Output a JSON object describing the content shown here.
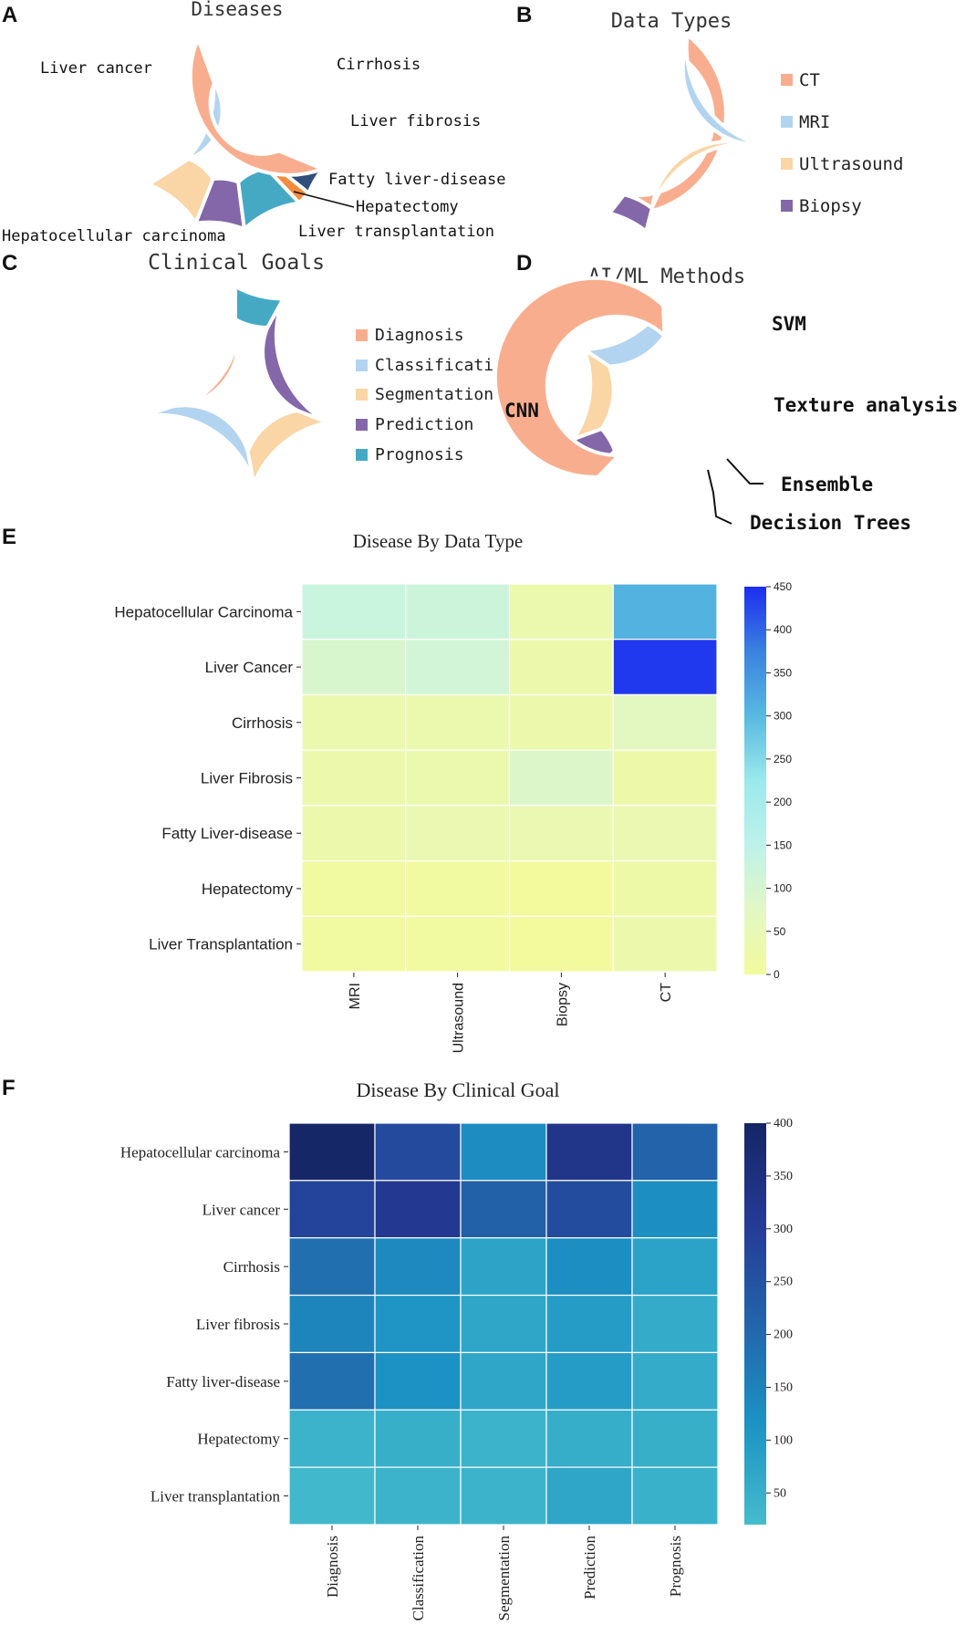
{
  "panel_letters": [
    "A",
    "B",
    "C",
    "D",
    "E",
    "F"
  ],
  "chart_data": [
    {
      "id": "A",
      "type": "pie",
      "subtype": "donut",
      "title": "Diseases",
      "labels": [
        "Liver cancer",
        "Cirrhosis",
        "Liver fibrosis",
        "Fatty liver-disease",
        "Hepatectomy",
        "Liver transplantation",
        "Hepatocellular carcinoma"
      ],
      "values": [
        28.5,
        10,
        8,
        10,
        2.2,
        4.5,
        36.8
      ],
      "colors": [
        "#b3d4f0",
        "#fad5a5",
        "#8467a8",
        "#45a9c4",
        "#f58b3c",
        "#2f4f7a",
        "#f8ae8e"
      ]
    },
    {
      "id": "B",
      "type": "pie",
      "subtype": "donut",
      "title": "Data Types",
      "labels": [
        "CT",
        "MRI",
        "Ultrasound",
        "Biopsy"
      ],
      "values": [
        42,
        24.5,
        27,
        6.5
      ],
      "colors": [
        "#f8ae8e",
        "#b3d4f0",
        "#fad5a5",
        "#8467a8"
      ],
      "legend": "right"
    },
    {
      "id": "C",
      "type": "pie",
      "subtype": "donut",
      "title": "Clinical Goals",
      "labels": [
        "Diagnosis",
        "Classification",
        "Segmentation",
        "Prediction",
        "Prognosis"
      ],
      "values": [
        30,
        23,
        16,
        23,
        8
      ],
      "colors": [
        "#f8ae8e",
        "#b3d4f0",
        "#fad5a5",
        "#8467a8",
        "#45a9c4"
      ],
      "legend": "right"
    },
    {
      "id": "D",
      "type": "pie",
      "subtype": "donut",
      "title": "AI/ML Methods",
      "labels": [
        "SVM",
        "Texture analysis",
        "Ensemble",
        "Decision Trees",
        "CNN"
      ],
      "values": [
        15,
        15,
        6,
        1.3,
        62.7
      ],
      "colors": [
        "#b3d4f0",
        "#fad5a5",
        "#8467a8",
        "#45a9c4",
        "#f8ae8e"
      ]
    },
    {
      "id": "E",
      "type": "heatmap",
      "title": "Disease By Data Type",
      "rows": [
        "Hepatocellular Carcinoma",
        "Liver Cancer",
        "Cirrhosis",
        "Liver Fibrosis",
        "Fatty Liver-disease",
        "Hepatectomy",
        "Liver Transplantation"
      ],
      "cols": [
        "MRI",
        "Ultrasound",
        "Biopsy",
        "CT"
      ],
      "values": [
        [
          125,
          120,
          35,
          310
        ],
        [
          95,
          110,
          30,
          440
        ],
        [
          35,
          35,
          30,
          70
        ],
        [
          30,
          35,
          85,
          25
        ],
        [
          30,
          40,
          40,
          40
        ],
        [
          10,
          10,
          2,
          20
        ],
        [
          10,
          10,
          2,
          30
        ]
      ],
      "vmin": 0,
      "vmax": 450,
      "colorbar_ticks": [
        0,
        50,
        100,
        150,
        200,
        250,
        300,
        350,
        400,
        450
      ],
      "colorscale": [
        "#f3fa9c",
        "#e2f7c4",
        "#bdf2ea",
        "#9ae9ec",
        "#58b9e0",
        "#3a82e0",
        "#1c2df0"
      ]
    },
    {
      "id": "F",
      "type": "heatmap",
      "title": "Disease By Clinical Goal",
      "rows": [
        "Hepatocellular carcinoma",
        "Liver cancer",
        "Cirrhosis",
        "Liver fibrosis",
        "Fatty liver-disease",
        "Hepatectomy",
        "Liver transplantation"
      ],
      "cols": [
        "Diagnosis",
        "Classification",
        "Segmentation",
        "Prediction",
        "Prognosis"
      ],
      "values": [
        [
          395,
          270,
          130,
          330,
          215
        ],
        [
          285,
          315,
          220,
          265,
          125
        ],
        [
          190,
          135,
          75,
          125,
          80
        ],
        [
          145,
          110,
          70,
          95,
          60
        ],
        [
          190,
          120,
          70,
          95,
          60
        ],
        [
          40,
          50,
          40,
          55,
          50
        ],
        [
          30,
          40,
          40,
          70,
          45
        ]
      ],
      "vmin": 20,
      "vmax": 400,
      "colorbar_ticks": [
        50,
        100,
        150,
        200,
        250,
        300,
        350,
        400
      ],
      "colorscale": [
        "#45bccc",
        "#1c93c4",
        "#2265aa",
        "#253a96",
        "#142664"
      ]
    }
  ]
}
